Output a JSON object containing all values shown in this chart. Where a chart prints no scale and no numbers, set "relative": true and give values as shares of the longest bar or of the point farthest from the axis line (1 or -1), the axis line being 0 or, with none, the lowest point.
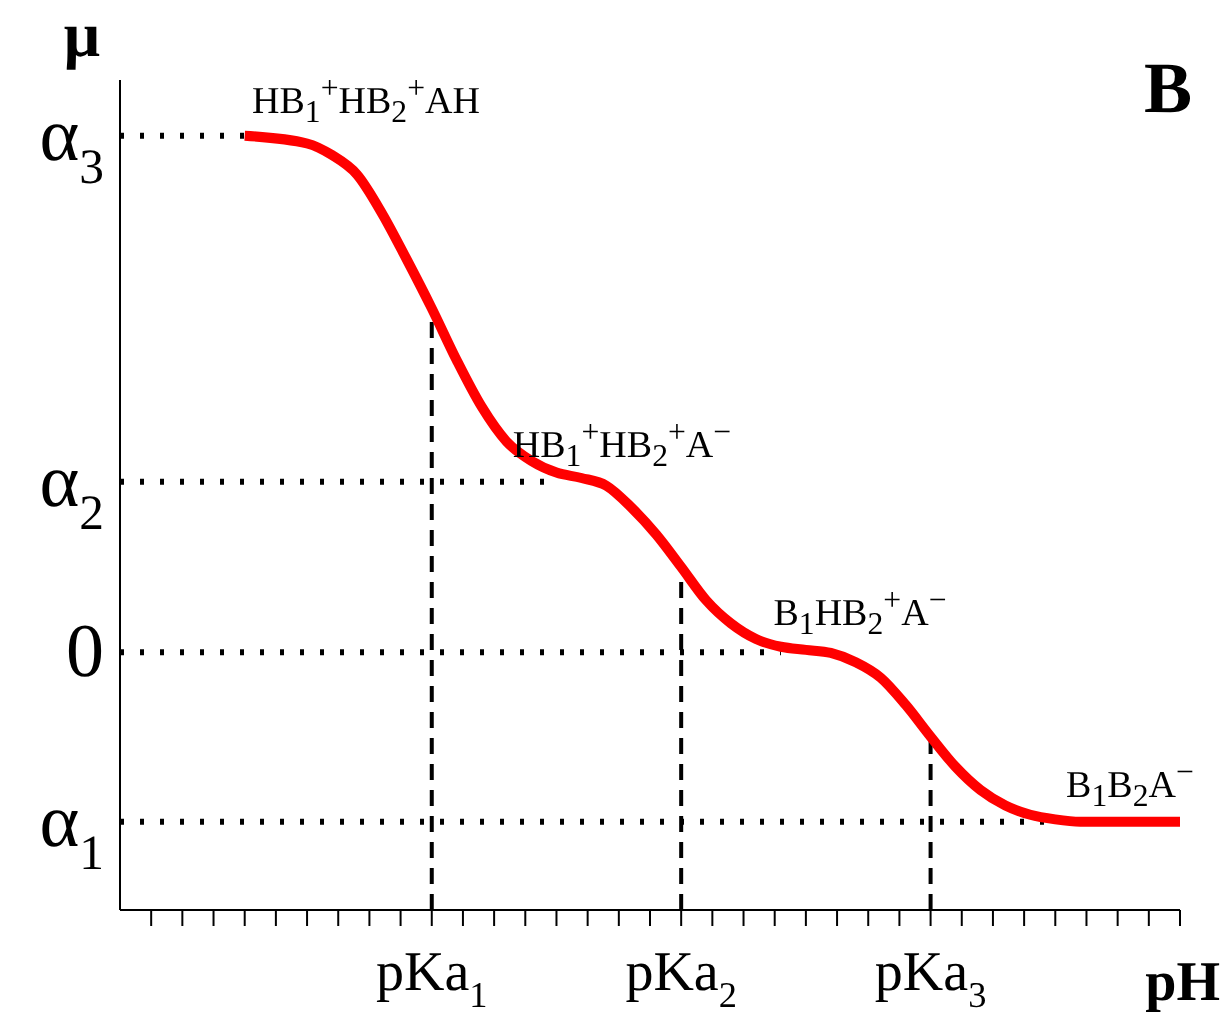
{
  "chart_data": {
    "type": "line",
    "relative": true,
    "xlabel": "pH",
    "ylabel": "μ",
    "xlim": [
      -0.25,
      4
    ],
    "xticks": [
      {
        "value": -0.125,
        "label": null
      },
      {
        "value": 0,
        "label": null
      },
      {
        "value": 0.125,
        "label": null
      },
      {
        "value": 0.25,
        "label": null
      },
      {
        "value": 0.375,
        "label": null
      },
      {
        "value": 0.5,
        "label": null
      },
      {
        "value": 0.625,
        "label": null
      },
      {
        "value": 0.75,
        "label": null
      },
      {
        "value": 0.875,
        "label": null
      },
      {
        "value": 1,
        "label": "pKa$_{1}$"
      },
      {
        "value": 1.125,
        "label": null
      },
      {
        "value": 1.25,
        "label": null
      },
      {
        "value": 1.375,
        "label": null
      },
      {
        "value": 1.5,
        "label": null
      },
      {
        "value": 1.625,
        "label": null
      },
      {
        "value": 1.75,
        "label": null
      },
      {
        "value": 1.875,
        "label": null
      },
      {
        "value": 2,
        "label": "pKa$_{2}$"
      },
      {
        "value": 2.125,
        "label": null
      },
      {
        "value": 2.25,
        "label": null
      },
      {
        "value": 2.375,
        "label": null
      },
      {
        "value": 2.5,
        "label": null
      },
      {
        "value": 2.625,
        "label": null
      },
      {
        "value": 2.75,
        "label": null
      },
      {
        "value": 2.875,
        "label": null
      },
      {
        "value": 3,
        "label": "pKa$_{3}$"
      },
      {
        "value": 3.125,
        "label": null
      },
      {
        "value": 3.25,
        "label": null
      },
      {
        "value": 3.375,
        "label": null
      },
      {
        "value": 3.5,
        "label": null
      },
      {
        "value": 3.625,
        "label": null
      },
      {
        "value": 3.75,
        "label": null
      },
      {
        "value": 3.875,
        "label": null
      },
      {
        "value": 4,
        "label": null
      }
    ],
    "series": [
      {
        "color": "#ff0000",
        "x": [
          0.25,
          0.5,
          0.6,
          0.7,
          0.8,
          0.9,
          1.0,
          1.1,
          1.2,
          1.3,
          1.4,
          1.5,
          1.6,
          1.7,
          1.8,
          1.9,
          2.0,
          2.1,
          2.2,
          2.3,
          2.4,
          2.5,
          2.6,
          2.7,
          2.8,
          2.9,
          3.0,
          3.1,
          3.2,
          3.3,
          3.4,
          3.5,
          3.6,
          4.0
        ],
        "values": [
          1,
          0.99,
          0.975,
          0.95,
          0.9,
          0.84,
          0.777,
          0.71,
          0.65,
          0.605,
          0.58,
          0.565,
          0.558,
          0.548,
          0.52,
          0.485,
          0.443,
          0.4,
          0.37,
          0.35,
          0.34,
          0.336,
          0.332,
          0.32,
          0.3,
          0.265,
          0.224,
          0.185,
          0.155,
          0.135,
          0.123,
          0.117,
          0.114,
          0.114
        ]
      }
    ],
    "ref_lines": [
      {
        "axis": "y",
        "value": 1,
        "label": "α$_{3}$",
        "line_style": "dotted",
        "color": "#000000"
      },
      {
        "axis": "y",
        "value": 0.553,
        "label": "α$_{2}$",
        "line_style": "dotted",
        "color": "#000000"
      },
      {
        "axis": "y",
        "value": 0.333,
        "label": "0",
        "line_style": "dotted",
        "color": "#000000"
      },
      {
        "axis": "y",
        "value": 0.114,
        "label": "α$_{1}$",
        "line_style": "dotted",
        "color": "#000000"
      },
      {
        "axis": "x",
        "value": 1,
        "line_style": "dashed",
        "color": "#000000"
      },
      {
        "axis": "x",
        "value": 2,
        "line_style": "dashed",
        "color": "#000000"
      },
      {
        "axis": "x",
        "value": 3,
        "line_style": "dashed",
        "color": "#000000"
      }
    ],
    "annotations": [
      "HB$_{1}$$^{+}$HB$_{2}$$^{+}$AH",
      "HB$_{1}$$^{+}$HB$_{2}$$^{+}$A$^{−}$",
      "B$_{1}$HB$_{2}$$^{+}$A$^{−}$",
      "B$_{1}$B$_{2}$A$^{−}$",
      "B"
    ]
  }
}
